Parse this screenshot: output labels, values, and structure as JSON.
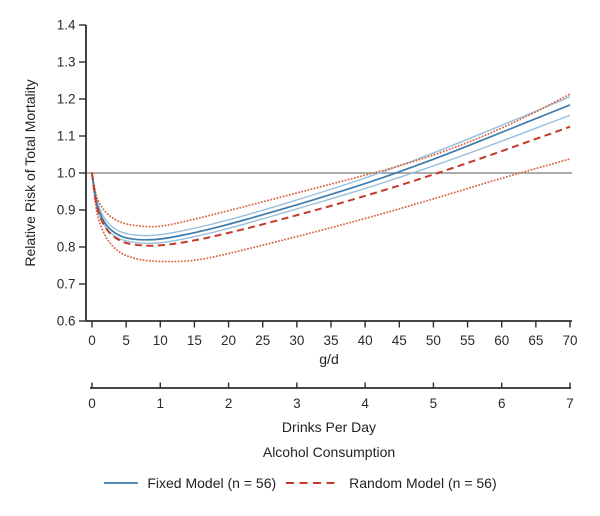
{
  "chart_data": {
    "type": "line",
    "title": "",
    "xlabel": "g/d",
    "x2label": "Drinks Per Day",
    "group_label": "Alcohol Consumption",
    "ylabel": "Relative Risk of Total Mortality",
    "xlim": [
      0,
      70
    ],
    "x2lim": [
      0,
      7
    ],
    "ylim": [
      0.6,
      1.4
    ],
    "xticks": [
      0,
      5,
      10,
      15,
      20,
      25,
      30,
      35,
      40,
      45,
      50,
      55,
      60,
      65,
      70
    ],
    "x2ticks": [
      0,
      1,
      2,
      3,
      4,
      5,
      6,
      7
    ],
    "yticks": [
      0.6,
      0.7,
      0.8,
      0.9,
      1.0,
      1.1,
      1.2,
      1.3,
      1.4
    ],
    "reference_y": 1.0,
    "grid": false,
    "legend_position": "bottom",
    "colors": {
      "axis": "#2d2d2d",
      "tick_text": "#2b2b2b",
      "reference_line": "#8f8f8f"
    },
    "x": [
      0,
      0.5,
      1,
      2,
      3,
      4,
      5,
      7,
      10,
      15,
      20,
      25,
      30,
      35,
      40,
      45,
      50,
      55,
      60,
      65,
      70
    ],
    "series": [
      {
        "name": "Fixed Model (n = 56)",
        "role": "estimate",
        "in_legend": true,
        "color": "#3e7cae",
        "line_style": "solid",
        "line_width": 1.7,
        "values": [
          1.0,
          0.93,
          0.895,
          0.86,
          0.842,
          0.831,
          0.824,
          0.819,
          0.82,
          0.838,
          0.861,
          0.887,
          0.914,
          0.942,
          0.971,
          1.003,
          1.037,
          1.073,
          1.11,
          1.147,
          1.184
        ]
      },
      {
        "name": "Fixed model 95% CI (upper)",
        "role": "ci",
        "in_legend": false,
        "color": "#97bedd",
        "line_style": "solid",
        "line_width": 1.4,
        "values": [
          1.0,
          0.94,
          0.906,
          0.871,
          0.853,
          0.842,
          0.836,
          0.83,
          0.832,
          0.85,
          0.873,
          0.899,
          0.927,
          0.956,
          0.986,
          1.019,
          1.054,
          1.091,
          1.129,
          1.167,
          1.206
        ]
      },
      {
        "name": "Fixed model 95% CI (lower)",
        "role": "ci",
        "in_legend": false,
        "color": "#97bedd",
        "line_style": "solid",
        "line_width": 1.4,
        "values": [
          1.0,
          0.922,
          0.886,
          0.851,
          0.833,
          0.822,
          0.816,
          0.81,
          0.81,
          0.827,
          0.85,
          0.876,
          0.903,
          0.93,
          0.958,
          0.988,
          1.019,
          1.052,
          1.086,
          1.121,
          1.156
        ]
      },
      {
        "name": "Random Model (n = 56)",
        "role": "estimate",
        "in_legend": true,
        "color": "#c23b27",
        "line_style": "dashed",
        "line_width": 2.0,
        "values": [
          1.0,
          0.925,
          0.888,
          0.85,
          0.83,
          0.818,
          0.81,
          0.804,
          0.803,
          0.817,
          0.838,
          0.861,
          0.886,
          0.911,
          0.938,
          0.966,
          0.996,
          1.027,
          1.059,
          1.092,
          1.125
        ]
      },
      {
        "name": "Random model 95% CI (upper)",
        "role": "ci",
        "in_legend": false,
        "color": "#d8694a",
        "line_style": "dotted",
        "line_width": 1.9,
        "values": [
          1.0,
          0.945,
          0.92,
          0.893,
          0.878,
          0.868,
          0.862,
          0.856,
          0.854,
          0.875,
          0.898,
          0.922,
          0.946,
          0.97,
          0.994,
          1.019,
          1.048,
          1.082,
          1.121,
          1.165,
          1.213
        ]
      },
      {
        "name": "Random model 95% CI (lower)",
        "role": "ci",
        "in_legend": false,
        "color": "#d8694a",
        "line_style": "dotted",
        "line_width": 1.9,
        "values": [
          1.0,
          0.91,
          0.87,
          0.826,
          0.802,
          0.786,
          0.776,
          0.765,
          0.76,
          0.762,
          0.782,
          0.805,
          0.828,
          0.852,
          0.877,
          0.903,
          0.93,
          0.958,
          0.986,
          1.012,
          1.038
        ]
      }
    ]
  }
}
